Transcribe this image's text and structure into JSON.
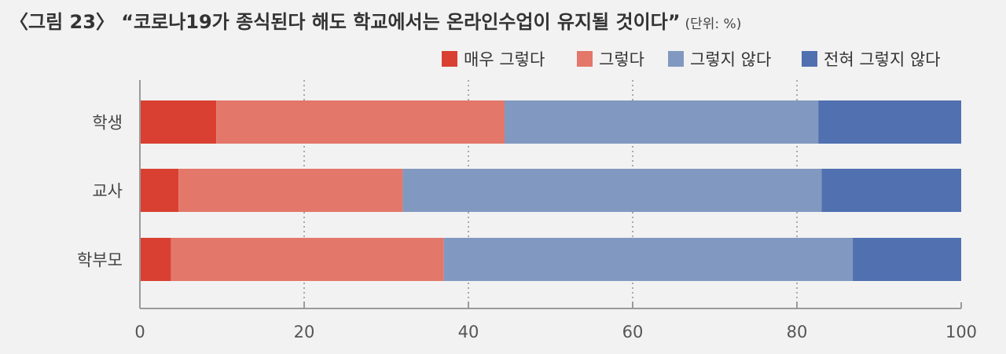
{
  "chart_data": {
    "type": "bar",
    "orientation": "horizontal",
    "stacked": true,
    "title": "〈그림 23〉 “코로나19가 종식된다 해도 학교에서는 온라인수업이 유지될 것이다”",
    "unit": "(단위: %)",
    "categories": [
      "학생",
      "교사",
      "학부모"
    ],
    "series": [
      {
        "name": "매우 그렇다",
        "color": "#d94032",
        "values": [
          9.3,
          4.7,
          3.8
        ]
      },
      {
        "name": "그렇다",
        "color": "#e3776a",
        "values": [
          35.1,
          27.3,
          33.2
        ]
      },
      {
        "name": "그렇지 않다",
        "color": "#8199c0",
        "values": [
          38.2,
          51.0,
          49.8
        ]
      },
      {
        "name": "전혀 그렇지 않다",
        "color": "#5070b0",
        "values": [
          17.4,
          17.0,
          13.2
        ]
      }
    ],
    "xlim": [
      0,
      100
    ],
    "xticks": [
      0,
      20,
      40,
      60,
      80,
      100
    ],
    "grid": "vertical dotted",
    "legend_position": "top-right"
  }
}
